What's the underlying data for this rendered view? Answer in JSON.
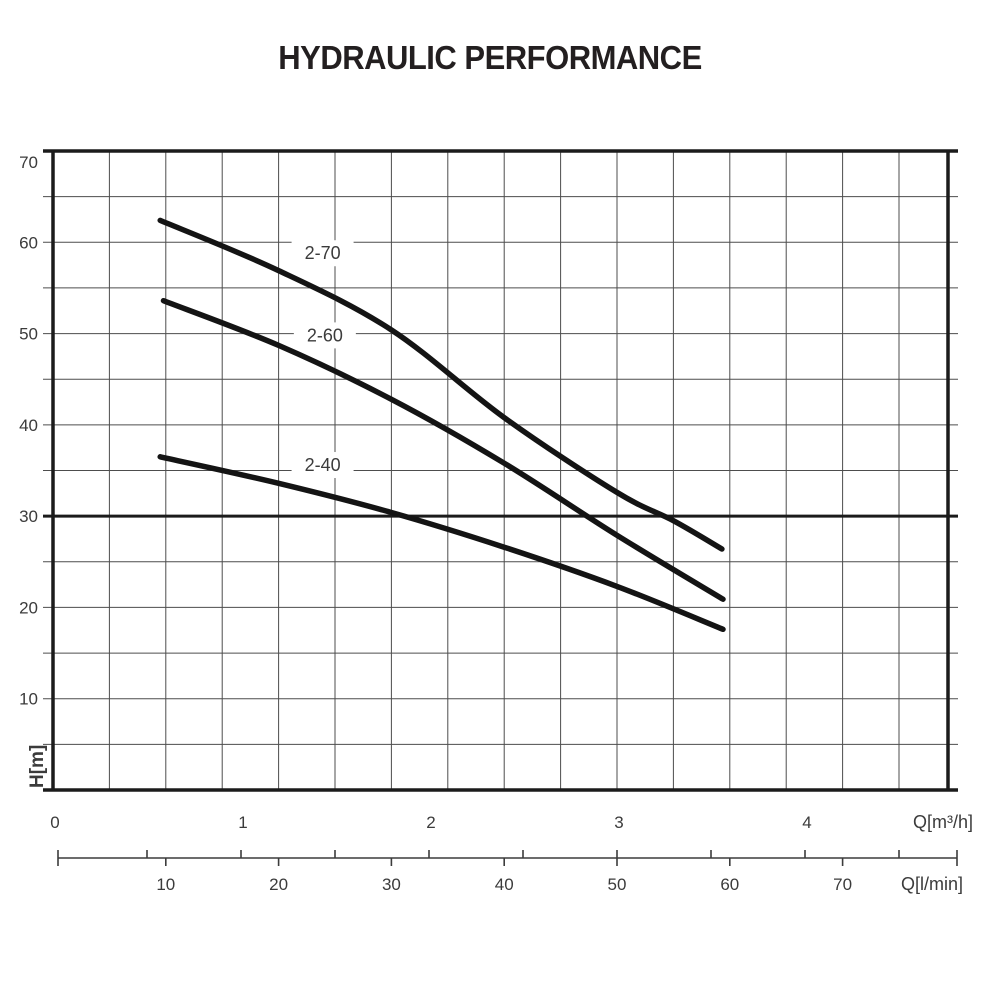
{
  "title": "HYDRAULIC PERFORMANCE",
  "chart_data": {
    "type": "line",
    "title": "HYDRAULIC PERFORMANCE",
    "grid": true,
    "y_axis": {
      "label": "H[m]",
      "ticks": [
        10,
        20,
        30,
        40,
        50,
        60,
        70
      ],
      "range": [
        0,
        70
      ],
      "grid_step": 5
    },
    "x_axis_primary": {
      "label": "Q[m³/h]",
      "ticks": [
        0,
        1,
        2,
        3,
        4
      ],
      "minor_tick_step": 0.5,
      "lmin_per_unit": 16.6667
    },
    "x_axis_secondary": {
      "label": "Q[l/min]",
      "ticks": [
        10,
        20,
        30,
        40,
        50,
        60,
        70
      ],
      "range": [
        0,
        80
      ],
      "grid_step": 5
    },
    "reference_line_h_m": 30,
    "series": [
      {
        "name": "2-70",
        "label_anchor": {
          "q_lmin": 23.9,
          "h_m": 58.8
        },
        "points_q_lmin_h_m": [
          [
            9.5,
            62.4
          ],
          [
            20,
            56.9
          ],
          [
            30,
            50.4
          ],
          [
            40,
            40.8
          ],
          [
            50,
            32.6
          ],
          [
            55,
            29.5
          ],
          [
            59.3,
            26.4
          ]
        ]
      },
      {
        "name": "2-60",
        "label_anchor": {
          "q_lmin": 24.1,
          "h_m": 49.8
        },
        "points_q_lmin_h_m": [
          [
            9.8,
            53.6
          ],
          [
            20,
            48.7
          ],
          [
            30,
            42.8
          ],
          [
            40,
            35.8
          ],
          [
            50,
            27.9
          ],
          [
            59.4,
            20.9
          ]
        ]
      },
      {
        "name": "2-40",
        "label_anchor": {
          "q_lmin": 23.9,
          "h_m": 35.6
        },
        "points_q_lmin_h_m": [
          [
            9.5,
            36.5
          ],
          [
            20,
            33.6
          ],
          [
            30,
            30.4
          ],
          [
            40,
            26.6
          ],
          [
            50,
            22.3
          ],
          [
            59.4,
            17.6
          ]
        ]
      }
    ],
    "colors": {
      "curve": "#141414",
      "grid_minor": "#4d4d4d",
      "frame": "#1b1b1b",
      "text": "#3b3b3b"
    }
  }
}
